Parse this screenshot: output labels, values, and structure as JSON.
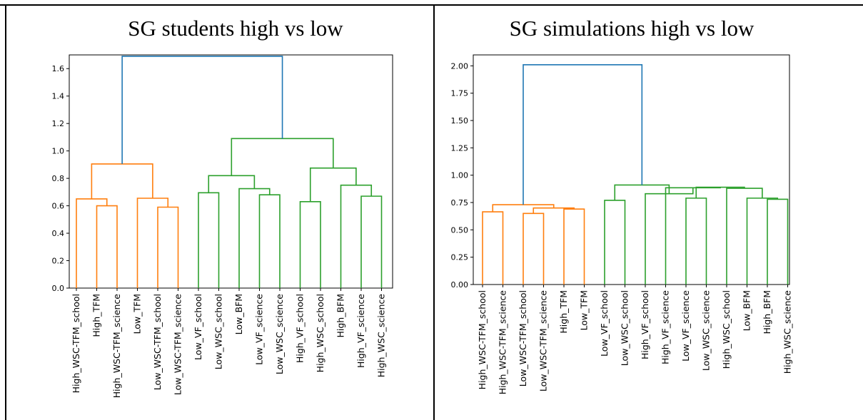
{
  "colors": {
    "orange": "#ff7f0e",
    "green": "#2ca02c",
    "blue": "#1f77b4"
  },
  "chart_data": [
    {
      "type": "dendrogram",
      "title": "SG students high vs low",
      "ylim": [
        0,
        1.7
      ],
      "yticks": [
        "0.0",
        "0.2",
        "0.4",
        "0.6",
        "0.8",
        "1.0",
        "1.2",
        "1.4",
        "1.6"
      ],
      "ytick_values": [
        0,
        0.2,
        0.4,
        0.6,
        0.8,
        1.0,
        1.2,
        1.4,
        1.6
      ],
      "leaves": [
        "High_WSC-TFM_school",
        "High_TFM",
        "High_WSC-TFM_science",
        "Low_TFM",
        "Low_WSC-TFM_school",
        "Low_WSC-TFM_science",
        "Low_VF_school",
        "Low_WSC_school",
        "Low_BFM",
        "Low_VF_science",
        "Low_WSC_science",
        "High_VF_school",
        "High_WSC_school",
        "High_BFM",
        "High_VF_science",
        "High_WSC_science"
      ],
      "merges": [
        {
          "a": 1,
          "b": 2,
          "height": 0.6,
          "color": "orange"
        },
        {
          "a": 0,
          "b": "m0",
          "height": 0.65,
          "color": "orange"
        },
        {
          "a": 4,
          "b": 5,
          "height": 0.59,
          "color": "orange"
        },
        {
          "a": 3,
          "b": "m2",
          "height": 0.655,
          "color": "orange"
        },
        {
          "a": "m1",
          "b": "m3",
          "height": 0.905,
          "color": "orange"
        },
        {
          "a": 6,
          "b": 7,
          "height": 0.695,
          "color": "green"
        },
        {
          "a": 9,
          "b": 10,
          "height": 0.68,
          "color": "green"
        },
        {
          "a": 8,
          "b": "m6",
          "height": 0.725,
          "color": "green"
        },
        {
          "a": "m5",
          "b": "m7",
          "height": 0.82,
          "color": "green"
        },
        {
          "a": 14,
          "b": 15,
          "height": 0.67,
          "color": "green"
        },
        {
          "a": 13,
          "b": "m9",
          "height": 0.75,
          "color": "green"
        },
        {
          "a": 11,
          "b": 12,
          "height": 0.63,
          "color": "green"
        },
        {
          "a": "m11",
          "b": "m10",
          "height": 0.875,
          "color": "green"
        },
        {
          "a": "m8",
          "b": "m12",
          "height": 1.09,
          "color": "green"
        },
        {
          "a": "m4",
          "b": "m13",
          "height": 1.69,
          "color": "blue"
        }
      ]
    },
    {
      "type": "dendrogram",
      "title": "SG simulations high vs low",
      "ylim": [
        0,
        2.1
      ],
      "yticks": [
        "0.00",
        "0.25",
        "0.50",
        "0.75",
        "1.00",
        "1.25",
        "1.50",
        "1.75",
        "2.00"
      ],
      "ytick_values": [
        0,
        0.25,
        0.5,
        0.75,
        1.0,
        1.25,
        1.5,
        1.75,
        2.0
      ],
      "leaves": [
        "High_WSC-TFM_school",
        "High_WSC-TFM_science",
        "Low_WSC-TFM_school",
        "Low_WSC-TFM_science",
        "High_TFM",
        "Low_TFM",
        "Low_VF_school",
        "Low_WSC_school",
        "High_VF_school",
        "High_VF_science",
        "Low_VF_science",
        "Low_WSC_science",
        "High_WSC_school",
        "Low_BFM",
        "High_BFM",
        "High_WSC_science"
      ],
      "merges": [
        {
          "a": 0,
          "b": 1,
          "height": 0.665,
          "color": "orange"
        },
        {
          "a": 2,
          "b": 3,
          "height": 0.65,
          "color": "orange"
        },
        {
          "a": 4,
          "b": 5,
          "height": 0.69,
          "color": "orange"
        },
        {
          "a": "m1",
          "b": "m2",
          "height": 0.7,
          "color": "orange"
        },
        {
          "a": "m0",
          "b": "m3",
          "height": 0.73,
          "color": "orange"
        },
        {
          "a": 6,
          "b": 7,
          "height": 0.77,
          "color": "green"
        },
        {
          "a": 10,
          "b": 11,
          "height": 0.79,
          "color": "green"
        },
        {
          "a": 14,
          "b": 15,
          "height": 0.78,
          "color": "green"
        },
        {
          "a": 13,
          "b": "m7",
          "height": 0.79,
          "color": "green"
        },
        {
          "a": 12,
          "b": "m8",
          "height": 0.88,
          "color": "green"
        },
        {
          "a": "m6",
          "b": "m9",
          "height": 0.89,
          "color": "green"
        },
        {
          "a": 9,
          "b": "m10",
          "height": 0.885,
          "color": "green"
        },
        {
          "a": 8,
          "b": "m11",
          "height": 0.83,
          "color": "green"
        },
        {
          "a": "m5",
          "b": "m12",
          "height": 0.91,
          "color": "green"
        },
        {
          "a": "m4",
          "b": "m13",
          "height": 2.01,
          "color": "blue"
        }
      ]
    }
  ]
}
